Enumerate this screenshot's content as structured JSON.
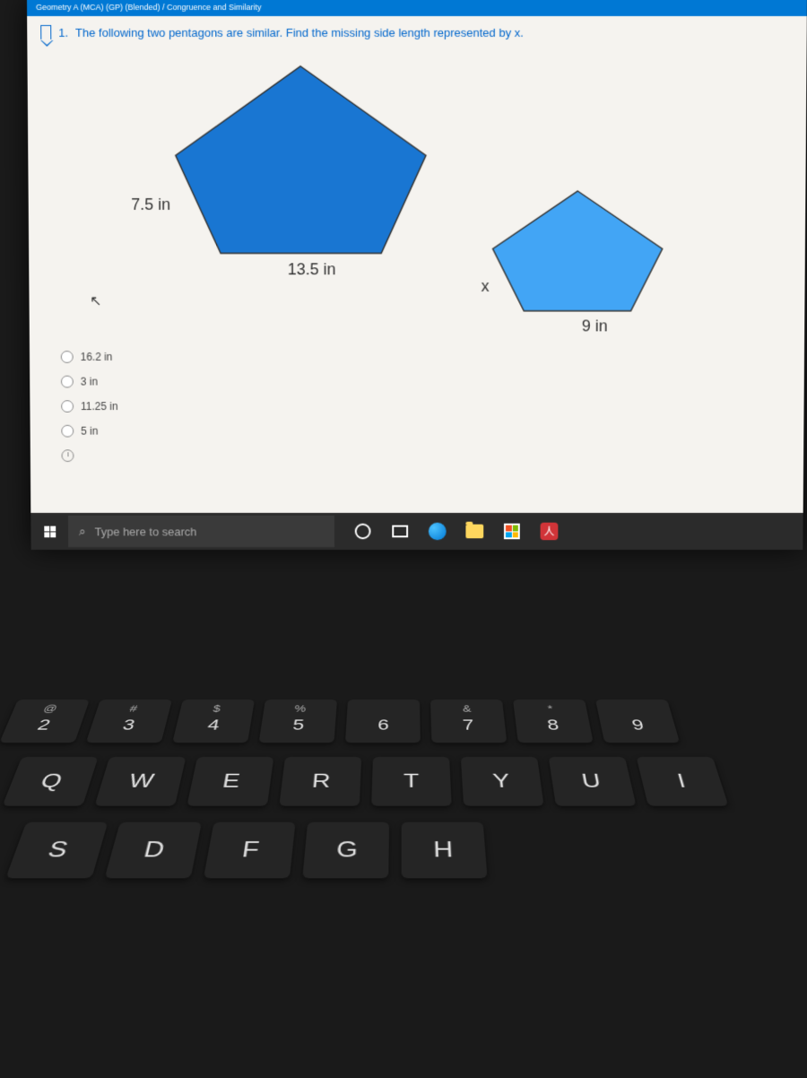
{
  "header": {
    "breadcrumb": "Geometry A (MCA) (GP) (Blended) / Congruence and Similarity"
  },
  "question": {
    "number": "1.",
    "text": "The following two pentagons are similar. Find the missing side length represented by x."
  },
  "diagram": {
    "pentagon_large": {
      "fill": "#1976d2",
      "stroke": "#333",
      "side_label_left": "7.5 in",
      "side_label_bottom": "13.5 in"
    },
    "pentagon_small": {
      "fill": "#42a5f5",
      "stroke": "#333",
      "side_label_left": "x",
      "side_label_bottom": "9 in"
    }
  },
  "answers": {
    "options": [
      {
        "label": "16.2 in"
      },
      {
        "label": "3 in"
      },
      {
        "label": "11.25 in"
      },
      {
        "label": "5 in"
      }
    ]
  },
  "taskbar": {
    "search_placeholder": "Type here to search"
  },
  "keyboard": {
    "row1": [
      {
        "upper": "@",
        "lower": "2"
      },
      {
        "upper": "#",
        "lower": "3"
      },
      {
        "upper": "$",
        "lower": "4"
      },
      {
        "upper": "%",
        "lower": "5"
      },
      {
        "upper": "",
        "lower": "6"
      },
      {
        "upper": "&",
        "lower": "7"
      },
      {
        "upper": "*",
        "lower": "8"
      },
      {
        "upper": "",
        "lower": "9"
      }
    ],
    "row2": [
      "Q",
      "W",
      "E",
      "R",
      "T",
      "Y",
      "U",
      "I"
    ],
    "row3": [
      "S",
      "D",
      "F",
      "G",
      "H"
    ]
  }
}
